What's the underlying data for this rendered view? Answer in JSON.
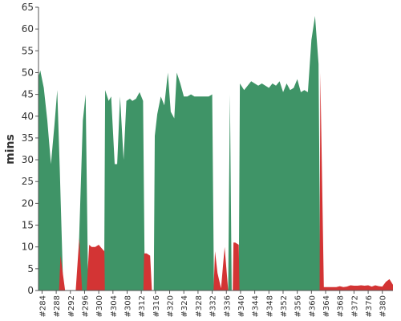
{
  "chart_data": {
    "type": "area",
    "title": "",
    "xlabel": "",
    "ylabel": "mins",
    "ylim": [
      0,
      65
    ],
    "yticks": [
      0,
      5,
      10,
      15,
      20,
      25,
      30,
      35,
      40,
      45,
      50,
      55,
      60,
      65
    ],
    "xlim": [
      283,
      383
    ],
    "x_tick_labels": [
      "#284",
      "#288",
      "#292",
      "#296",
      "#300",
      "#304",
      "#308",
      "#312",
      "#316",
      "#320",
      "#324",
      "#328",
      "#332",
      "#336",
      "#340",
      "#344",
      "#348",
      "#352",
      "#356",
      "#360",
      "#364",
      "#368",
      "#372",
      "#376",
      "#380"
    ],
    "x_tick_values": [
      284,
      288,
      292,
      296,
      300,
      304,
      308,
      312,
      316,
      320,
      324,
      328,
      332,
      336,
      340,
      344,
      348,
      352,
      356,
      360,
      364,
      368,
      372,
      376,
      380
    ],
    "grid": false,
    "colors": {
      "pass": "#3f9467",
      "fail": "#d33434"
    },
    "series": [
      {
        "color": "#3f9467",
        "points": [
          [
            283,
            49
          ],
          [
            283.5,
            50.5
          ],
          [
            284.5,
            46.5
          ],
          [
            285.5,
            39
          ],
          [
            286.5,
            29
          ],
          [
            287.5,
            38
          ],
          [
            288.3,
            46
          ],
          [
            289,
            28
          ],
          [
            290,
            0
          ],
          [
            292,
            0
          ],
          [
            293,
            0
          ],
          [
            294,
            0
          ],
          [
            295.5,
            39
          ],
          [
            296.3,
            45
          ],
          [
            297,
            0
          ],
          [
            301.5,
            0
          ],
          [
            301.8,
            46
          ],
          [
            302.8,
            43.5
          ],
          [
            303.5,
            44.5
          ],
          [
            304.5,
            29
          ],
          [
            305.2,
            29
          ],
          [
            306,
            44.5
          ],
          [
            307,
            30
          ],
          [
            307.8,
            43.5
          ],
          [
            308.8,
            44
          ],
          [
            309.5,
            43.5
          ],
          [
            310.5,
            44
          ],
          [
            311.5,
            45.5
          ],
          [
            312.5,
            43.5
          ],
          [
            313,
            0
          ],
          [
            315.5,
            0
          ],
          [
            315.8,
            35.5
          ],
          [
            316.5,
            40.5
          ],
          [
            317.5,
            44.5
          ],
          [
            318.5,
            42.5
          ],
          [
            319.5,
            50
          ],
          [
            320.3,
            41
          ],
          [
            321.3,
            39.5
          ],
          [
            322,
            50
          ],
          [
            323,
            47.5
          ],
          [
            324,
            44.5
          ],
          [
            325,
            44.5
          ],
          [
            326,
            45
          ],
          [
            327,
            44.5
          ],
          [
            328,
            44.5
          ],
          [
            329,
            44.5
          ],
          [
            330,
            44.5
          ],
          [
            331,
            44.5
          ],
          [
            332,
            45
          ],
          [
            332.5,
            0
          ],
          [
            336.5,
            0
          ],
          [
            337,
            45
          ],
          [
            337.5,
            0
          ],
          [
            339.5,
            0
          ],
          [
            339.8,
            47.5
          ],
          [
            341,
            46
          ],
          [
            342,
            47
          ],
          [
            343,
            48
          ],
          [
            344,
            47.5
          ],
          [
            345,
            47
          ],
          [
            346,
            47.5
          ],
          [
            347,
            47
          ],
          [
            348,
            46.5
          ],
          [
            349,
            47.5
          ],
          [
            350,
            47
          ],
          [
            351,
            48
          ],
          [
            352,
            45.5
          ],
          [
            353,
            47.5
          ],
          [
            354,
            46
          ],
          [
            355,
            46.5
          ],
          [
            356,
            48.5
          ],
          [
            357,
            45.5
          ],
          [
            358,
            46
          ],
          [
            359,
            45.5
          ],
          [
            360,
            57.5
          ],
          [
            361,
            63
          ],
          [
            362,
            52
          ],
          [
            362.5,
            0
          ]
        ]
      },
      {
        "color": "#d33434",
        "points": [
          [
            288.8,
            0
          ],
          [
            289.2,
            8
          ],
          [
            290.5,
            0
          ],
          [
            293.5,
            0
          ],
          [
            294.5,
            12
          ],
          [
            295.3,
            0
          ],
          [
            296.6,
            0
          ],
          [
            297.3,
            10.5
          ],
          [
            298,
            10
          ],
          [
            299,
            10
          ],
          [
            300,
            10.5
          ],
          [
            301,
            9.5
          ],
          [
            301.6,
            9
          ],
          [
            301.7,
            0
          ],
          [
            312.6,
            0
          ],
          [
            312.8,
            8.5
          ],
          [
            313.5,
            8.5
          ],
          [
            314.5,
            8
          ],
          [
            315,
            0
          ],
          [
            332.4,
            0
          ],
          [
            332.8,
            9
          ],
          [
            333.5,
            4
          ],
          [
            334.5,
            0.5
          ],
          [
            335.5,
            10
          ],
          [
            336.5,
            0
          ],
          [
            337.8,
            0
          ],
          [
            338,
            11
          ],
          [
            338.5,
            11
          ],
          [
            339.5,
            10.5
          ],
          [
            339.7,
            0
          ],
          [
            362.3,
            0
          ],
          [
            362.5,
            50
          ],
          [
            363.5,
            0.8
          ],
          [
            365,
            0.8
          ],
          [
            366,
            0.8
          ],
          [
            367,
            0.8
          ],
          [
            368,
            1
          ],
          [
            369,
            0.8
          ],
          [
            370,
            0.9
          ],
          [
            371,
            1.2
          ],
          [
            372,
            1.1
          ],
          [
            373,
            1.1
          ],
          [
            374,
            1.2
          ],
          [
            375,
            1.1
          ],
          [
            376,
            1.2
          ],
          [
            377,
            0.9
          ],
          [
            378,
            1.2
          ],
          [
            379,
            1
          ],
          [
            380,
            0.9
          ],
          [
            381,
            2
          ],
          [
            382,
            2.6
          ],
          [
            383,
            1.3
          ],
          [
            383,
            0
          ]
        ]
      }
    ]
  }
}
